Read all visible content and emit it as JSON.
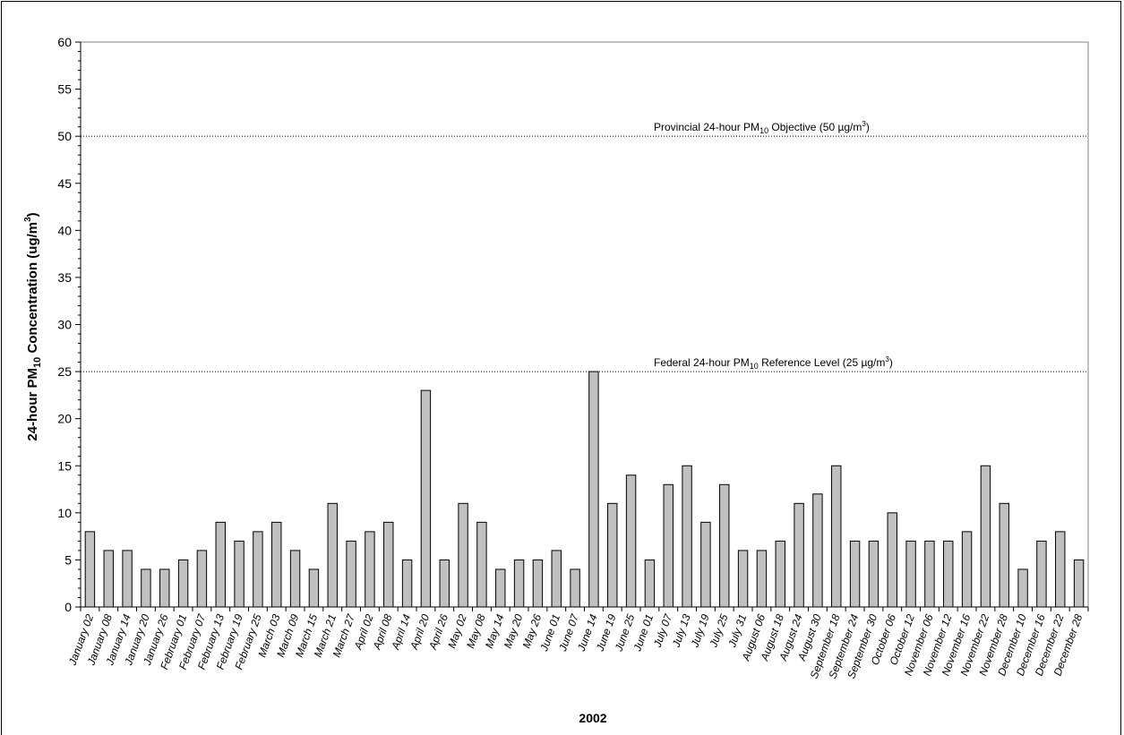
{
  "chart_data": {
    "type": "bar",
    "xlabel": "2002",
    "ylabel": {
      "prefix": "24-hour PM",
      "sub": "10",
      "middle": " Concentration (ug/m",
      "sup": "3",
      "suffix": ")"
    },
    "ylim": [
      0,
      60
    ],
    "yticks": [
      "0",
      "5",
      "10",
      "15",
      "20",
      "25",
      "30",
      "35",
      "40",
      "45",
      "50",
      "55",
      "60"
    ],
    "grid": false,
    "bar_color": "#c0c0c0",
    "categories": [
      "January 02",
      "January 08",
      "January 14",
      "January 20",
      "January 26",
      "February 01",
      "February 07",
      "February 13",
      "February 19",
      "February 25",
      "March 03",
      "March 09",
      "March 15",
      "March 21",
      "March 27",
      "April 02",
      "April 08",
      "April 14",
      "April 20",
      "April 26",
      "May 02",
      "May 08",
      "May 14",
      "May 20",
      "May 26",
      "June 01",
      "June 07",
      "June 14",
      "June 19",
      "June 25",
      "June 01",
      "July 07",
      "July 13",
      "July 19",
      "July 25",
      "July 31",
      "August 06",
      "August 18",
      "August 24",
      "August 30",
      "September 18",
      "September 24",
      "September 30",
      "October 06",
      "October 12",
      "November 06",
      "November 12",
      "November 16",
      "November 22",
      "November 28",
      "December 10",
      "December 16",
      "December 22",
      "December 28"
    ],
    "values": [
      8,
      6,
      6,
      4,
      4,
      5,
      6,
      9,
      7,
      8,
      9,
      6,
      4,
      11,
      7,
      8,
      9,
      5,
      23,
      5,
      11,
      9,
      4,
      5,
      5,
      6,
      4,
      25,
      11,
      14,
      5,
      13,
      15,
      9,
      13,
      6,
      6,
      7,
      11,
      12,
      15,
      7,
      7,
      10,
      7,
      7,
      7,
      8,
      15,
      11,
      4,
      7,
      8,
      5
    ],
    "reference_lines": [
      {
        "value": 50,
        "label_prefix": "Provincial 24-hour PM",
        "label_sub": "10",
        "label_middle": " Objective (50 µg/m",
        "label_sup": "3",
        "label_suffix": ")"
      },
      {
        "value": 25,
        "label_prefix": "Federal 24-hour PM",
        "label_sub": "10",
        "label_middle": " Reference Level (25 µg/m",
        "label_sup": "3",
        "label_suffix": ")"
      }
    ]
  }
}
